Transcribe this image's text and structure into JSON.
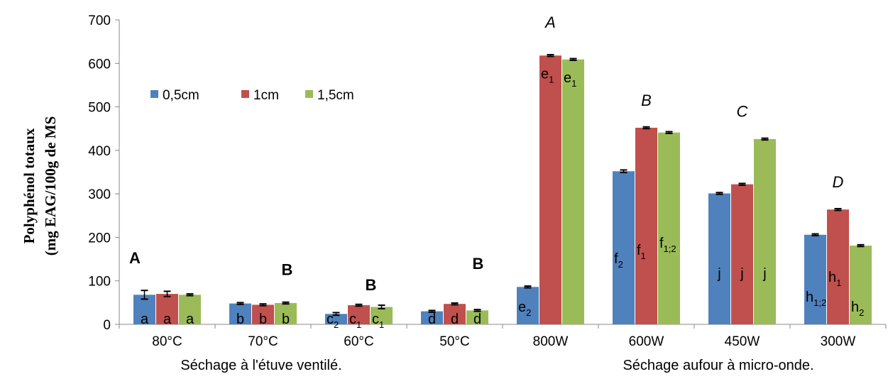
{
  "chart_data": {
    "type": "bar",
    "ylabel_lines": [
      "Polyphénol totaux",
      "(mg EAG/100g de MS"
    ],
    "ylim": [
      0,
      700
    ],
    "yticks": [
      0,
      100,
      200,
      300,
      400,
      500,
      600,
      700
    ],
    "grid": false,
    "legend_position": "top-left",
    "categories": [
      "80°C",
      "70°C",
      "60°C",
      "50°C",
      "800W",
      "600W",
      "450W",
      "300W"
    ],
    "x_group_titles": [
      {
        "text": "Séchage à l'étuve ventilé.",
        "categories": [
          "80°C",
          "70°C",
          "60°C",
          "50°C"
        ]
      },
      {
        "text": "Séchage aufour à micro-onde.",
        "categories": [
          "800W",
          "600W",
          "450W",
          "300W"
        ]
      }
    ],
    "series": [
      {
        "name": "0,5cm",
        "color": "#4F81BD",
        "values": [
          68,
          48,
          24,
          30,
          86,
          352,
          301,
          206
        ],
        "errors": [
          10,
          2,
          3,
          2,
          2,
          3,
          2,
          2
        ],
        "labels": [
          {
            "main": "a",
            "sub": ""
          },
          {
            "main": "b",
            "sub": ""
          },
          {
            "main": "c",
            "sub": "2"
          },
          {
            "main": "d",
            "sub": ""
          },
          {
            "main": "e",
            "sub": "2"
          },
          {
            "main": "f",
            "sub": "2"
          },
          {
            "main": "j",
            "sub": ""
          },
          {
            "main": "h",
            "sub": "1;2"
          }
        ]
      },
      {
        "name": "1cm",
        "color": "#C0504D",
        "values": [
          70,
          45,
          44,
          47,
          618,
          452,
          322,
          264
        ],
        "errors": [
          6,
          2,
          2,
          2,
          2,
          2,
          2,
          2
        ],
        "labels": [
          {
            "main": "a",
            "sub": ""
          },
          {
            "main": "b",
            "sub": ""
          },
          {
            "main": "c",
            "sub": "1"
          },
          {
            "main": "d",
            "sub": ""
          },
          {
            "main": "e",
            "sub": "1"
          },
          {
            "main": "f",
            "sub": "1"
          },
          {
            "main": "j",
            "sub": ""
          },
          {
            "main": "h",
            "sub": "1"
          }
        ]
      },
      {
        "name": "1,5cm",
        "color": "#9BBB59",
        "values": [
          68,
          49,
          40,
          32,
          609,
          441,
          426,
          181
        ],
        "errors": [
          2,
          2,
          4,
          2,
          2,
          2,
          2,
          2
        ],
        "labels": [
          {
            "main": "a",
            "sub": ""
          },
          {
            "main": "b",
            "sub": ""
          },
          {
            "main": "c",
            "sub": "1"
          },
          {
            "main": "d",
            "sub": ""
          },
          {
            "main": "e",
            "sub": "1"
          },
          {
            "main": "f",
            "sub": "1;2"
          },
          {
            "main": "j",
            "sub": ""
          },
          {
            "main": "h",
            "sub": "2"
          }
        ]
      }
    ],
    "group_letters": [
      {
        "category": "80°C",
        "text": "A",
        "style": "bold"
      },
      {
        "category": "70°C",
        "text": "B",
        "style": "bold"
      },
      {
        "category": "60°C",
        "text": "B",
        "style": "bold"
      },
      {
        "category": "50°C",
        "text": "B",
        "style": "bold"
      },
      {
        "category": "800W",
        "text": "A",
        "style": "italic"
      },
      {
        "category": "600W",
        "text": "B",
        "style": "italic"
      },
      {
        "category": "450W",
        "text": "C",
        "style": "italic"
      },
      {
        "category": "300W",
        "text": "D",
        "style": "italic"
      }
    ]
  }
}
